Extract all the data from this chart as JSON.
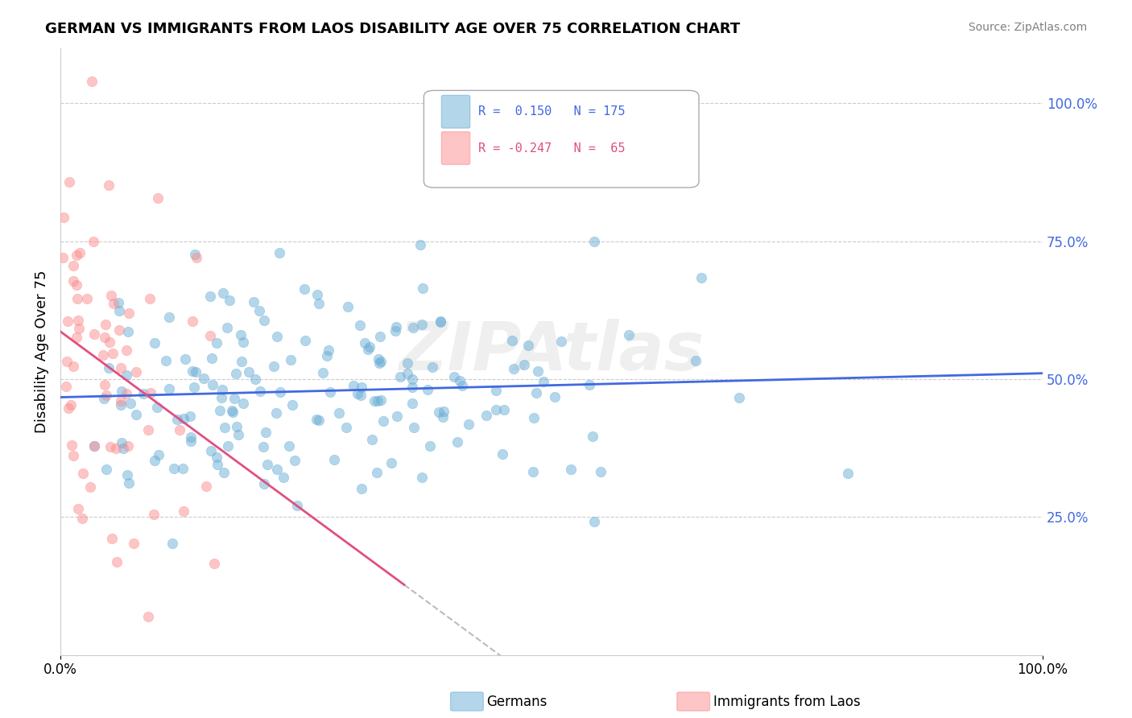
{
  "title": "GERMAN VS IMMIGRANTS FROM LAOS DISABILITY AGE OVER 75 CORRELATION CHART",
  "source": "Source: ZipAtlas.com",
  "ylabel": "Disability Age Over 75",
  "legend_blue_R": "0.150",
  "legend_blue_N": "175",
  "legend_pink_R": "-0.247",
  "legend_pink_N": "65",
  "legend_label_blue": "Germans",
  "legend_label_pink": "Immigrants from Laos",
  "blue_color": "#6baed6",
  "pink_color": "#fc8d8d",
  "trend_blue": "#4169e1",
  "trend_pink": "#e05080",
  "watermark": "ZIPAtlas",
  "ytick_labels": [
    "25.0%",
    "50.0%",
    "75.0%",
    "100.0%"
  ],
  "ytick_values": [
    0.25,
    0.5,
    0.75,
    1.0
  ],
  "background": "#ffffff",
  "grid_color": "#cccccc",
  "grid_style": "--"
}
